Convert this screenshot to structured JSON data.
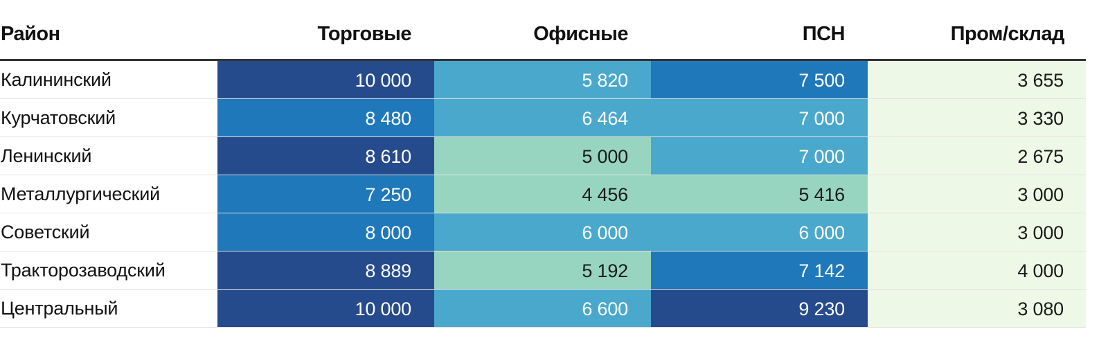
{
  "headers": [
    "Район",
    "Торговые",
    "Офисные",
    "ПСН",
    "Пром/склад"
  ],
  "palette": {
    "darkest": "#264b8c",
    "dark": "#1f78b9",
    "mid": "#4aa8cc",
    "light": "#98d5c0",
    "lightest": "#eef8e6"
  },
  "rows": [
    {
      "district": "Калининский",
      "values": [
        "10 000",
        "5 820",
        "7 500",
        "3 655"
      ],
      "colors": [
        "#264b8c",
        "#4aa8cc",
        "#1f78b9",
        "#eef8e6"
      ],
      "text": [
        "light",
        "light",
        "light",
        "dark"
      ]
    },
    {
      "district": "Курчатовский",
      "values": [
        "8 480",
        "6 464",
        "7 000",
        "3 330"
      ],
      "colors": [
        "#1f78b9",
        "#4aa8cc",
        "#4aa8cc",
        "#eef8e6"
      ],
      "text": [
        "light",
        "light",
        "light",
        "dark"
      ]
    },
    {
      "district": "Ленинский",
      "values": [
        "8 610",
        "5 000",
        "7 000",
        "2 675"
      ],
      "colors": [
        "#264b8c",
        "#98d5c0",
        "#4aa8cc",
        "#eef8e6"
      ],
      "text": [
        "light",
        "dark",
        "light",
        "dark"
      ]
    },
    {
      "district": "Металлургический",
      "values": [
        "7 250",
        "4 456",
        "5 416",
        "3 000"
      ],
      "colors": [
        "#1f78b9",
        "#98d5c0",
        "#98d5c0",
        "#eef8e6"
      ],
      "text": [
        "light",
        "dark",
        "dark",
        "dark"
      ]
    },
    {
      "district": "Советский",
      "values": [
        "8 000",
        "6 000",
        "6 000",
        "3 000"
      ],
      "colors": [
        "#1f78b9",
        "#4aa8cc",
        "#4aa8cc",
        "#eef8e6"
      ],
      "text": [
        "light",
        "light",
        "light",
        "dark"
      ]
    },
    {
      "district": "Тракторозаводский",
      "values": [
        "8 889",
        "5 192",
        "7 142",
        "4 000"
      ],
      "colors": [
        "#264b8c",
        "#98d5c0",
        "#1f78b9",
        "#eef8e6"
      ],
      "text": [
        "light",
        "dark",
        "light",
        "dark"
      ]
    },
    {
      "district": "Центральный",
      "values": [
        "10 000",
        "6 600",
        "9 230",
        "3 080"
      ],
      "colors": [
        "#264b8c",
        "#4aa8cc",
        "#264b8c",
        "#eef8e6"
      ],
      "text": [
        "light",
        "light",
        "light",
        "dark"
      ]
    }
  ]
}
